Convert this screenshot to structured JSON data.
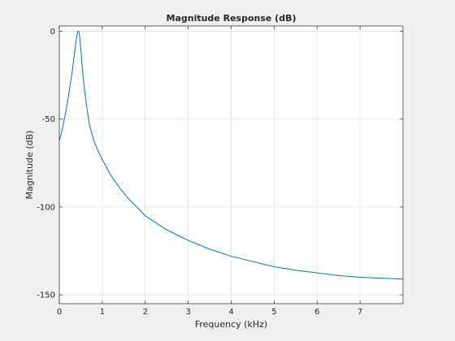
{
  "chart_data": {
    "type": "line",
    "title": "Magnitude Response (dB)",
    "xlabel": "Frequency (kHz)",
    "ylabel": "Magnitude (dB)",
    "xlim": [
      0,
      8
    ],
    "ylim": [
      -155,
      3
    ],
    "xticks": [
      0,
      1,
      2,
      3,
      4,
      5,
      6,
      7
    ],
    "xtick_labels": [
      "0",
      "1",
      "2",
      "3",
      "4",
      "5",
      "6",
      "7"
    ],
    "yticks": [
      0,
      -50,
      -100,
      -150
    ],
    "ytick_labels": [
      "0",
      "-50",
      "-100",
      "-150"
    ],
    "grid": true,
    "line_color": "#0072bd",
    "series": [
      {
        "x": [
          0,
          0.05,
          0.1,
          0.15,
          0.2,
          0.25,
          0.3,
          0.35,
          0.4,
          0.43,
          0.45,
          0.47,
          0.5,
          0.55,
          0.6,
          0.65,
          0.7,
          0.8,
          0.9,
          1.0,
          1.2,
          1.4,
          1.6,
          1.8,
          2.0,
          2.5,
          3.0,
          3.5,
          4.0,
          4.5,
          5.0,
          5.5,
          6.0,
          6.5,
          7.0,
          7.5,
          8.0
        ],
        "y": [
          -62,
          -58,
          -52,
          -46,
          -39,
          -31,
          -23,
          -13,
          -4,
          0,
          0,
          -2,
          -10,
          -25,
          -36,
          -45,
          -53,
          -62,
          -68,
          -73,
          -82,
          -89,
          -95,
          -100,
          -105,
          -113,
          -119,
          -124,
          -128,
          -131,
          -134,
          -136,
          -137.5,
          -139,
          -140,
          -140.5,
          -141
        ]
      }
    ]
  }
}
